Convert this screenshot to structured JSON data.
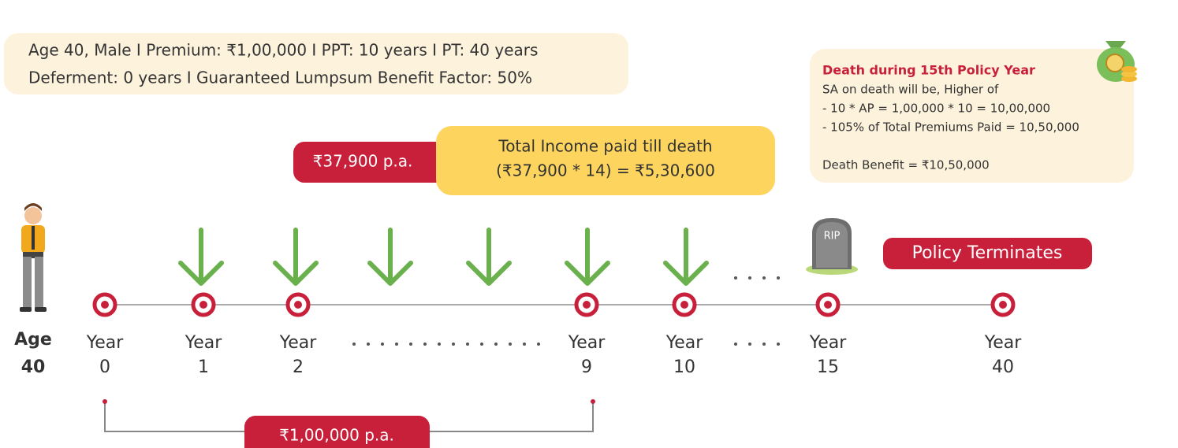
{
  "info": {
    "line1": "Age 40, Male  I  Premium: ₹1,00,000  I  PPT: 10 years  I  PT: 40 years",
    "line2": "Deferment: 0 years  I  Guaranteed Lumpsum Benefit Factor: 50%"
  },
  "income": {
    "amount": "₹37,900 p.a.",
    "total_title": "Total Income paid till death",
    "total_value": "(₹37,900 * 14) = ₹5,30,600"
  },
  "death_box": {
    "title": "Death during 15th Policy Year",
    "lines": [
      "SA on death will be, Higher of",
      "- 10 * AP = 1,00,000 * 10 = 10,00,000",
      "- 105% of Total Premiums Paid = 10,50,000"
    ],
    "benefit": "Death Benefit = ₹10,50,000"
  },
  "grave": "RIP",
  "terminates": "Policy Terminates",
  "age": {
    "label": "Age",
    "value": "40"
  },
  "timeline": {
    "year_word": "Year",
    "years": [
      "0",
      "1",
      "2",
      "9",
      "10",
      "15",
      "40"
    ]
  },
  "premium": "₹1,00,000 p.a."
}
